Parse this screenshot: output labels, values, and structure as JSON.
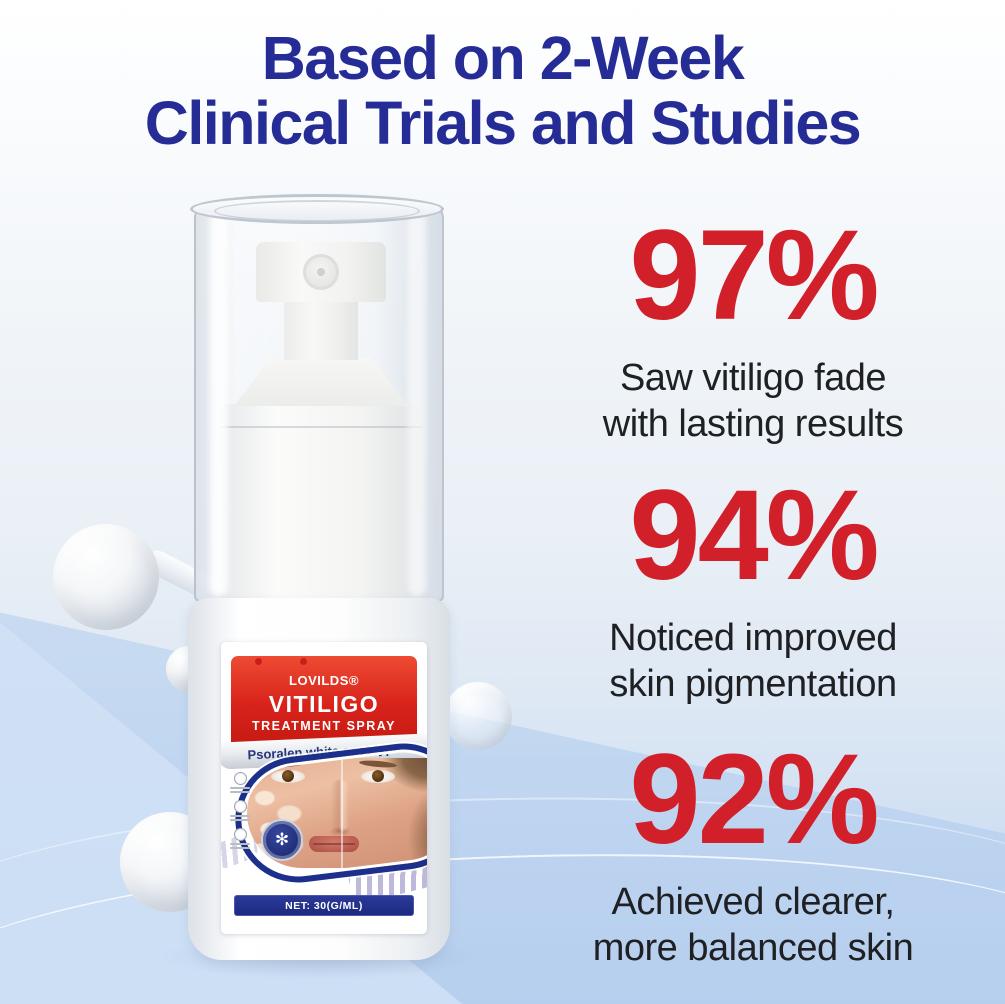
{
  "headline": {
    "line1": "Based on 2-Week",
    "line2": "Clinical Trials and Studies"
  },
  "product": {
    "brand": "LOVILDS®",
    "name": "VITILIGO",
    "subtitle": "TREATMENT SPRAY",
    "variant": "Psoralen white spot type",
    "net_weight": "NET: 30(G/ML)"
  },
  "stats": [
    {
      "value": "97%",
      "caption_line1": "Saw vitiligo fade",
      "caption_line2": "with lasting results"
    },
    {
      "value": "94%",
      "caption_line1": "Noticed improved",
      "caption_line2": "skin pigmentation"
    },
    {
      "value": "92%",
      "caption_line1": "Achieved clearer,",
      "caption_line2": "more balanced skin"
    }
  ],
  "icons": {
    "badge_glyph": "✻"
  },
  "colors": {
    "headline_blue": "#262C96",
    "stat_red": "#D2202A",
    "label_red": "#D8231B",
    "ring_navy": "#1C2F8A",
    "net_bar_navy": "#202E8C",
    "caption_dark": "#1F2023",
    "background_bottom_blue": "#C2D6EE"
  }
}
